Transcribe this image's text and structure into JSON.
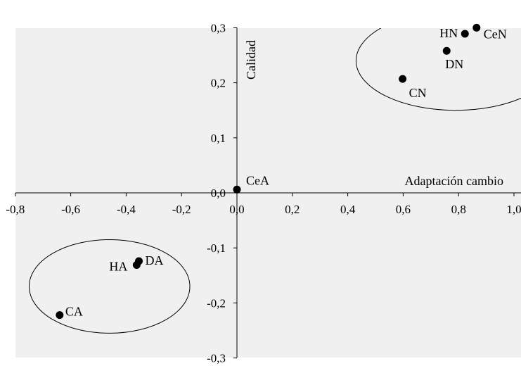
{
  "chart_data": {
    "type": "scatter",
    "xlabel": "Adaptación cambio",
    "ylabel": "Calidad",
    "xlim": [
      -0.8,
      1.0
    ],
    "ylim": [
      -0.3,
      0.3
    ],
    "x_ticks": [
      -0.8,
      -0.6,
      -0.4,
      -0.2,
      0.0,
      0.2,
      0.4,
      0.6,
      0.8,
      1.0
    ],
    "y_ticks": [
      -0.3,
      -0.2,
      -0.1,
      0.0,
      0.1,
      0.2,
      0.3
    ],
    "x_tick_labels": [
      "-0,8",
      "-0,6",
      "-0,4",
      "-0,2",
      "0,0",
      "0,2",
      "0,4",
      "0,6",
      "0,8",
      "1,0"
    ],
    "y_tick_labels": [
      "-0,3",
      "-0,2",
      "-0,1",
      "0,0",
      "0,1",
      "0,2",
      "0,3"
    ],
    "points": [
      {
        "label": "CeN",
        "x": 0.865,
        "y": 0.3
      },
      {
        "label": "HN",
        "x": 0.823,
        "y": 0.289
      },
      {
        "label": "DN",
        "x": 0.757,
        "y": 0.258
      },
      {
        "label": "CN",
        "x": 0.598,
        "y": 0.207
      },
      {
        "label": "CeA",
        "x": 0.0,
        "y": 0.006
      },
      {
        "label": "DA",
        "x": -0.354,
        "y": -0.124
      },
      {
        "label": "HA",
        "x": -0.362,
        "y": -0.131
      },
      {
        "label": "CA",
        "x": -0.64,
        "y": -0.222
      }
    ],
    "ellipses": [
      {
        "cx": 0.79,
        "cy": 0.24,
        "rx": 0.36,
        "ry": 0.09
      },
      {
        "cx": -0.46,
        "cy": -0.17,
        "rx": 0.29,
        "ry": 0.085
      }
    ],
    "grid": false,
    "background": "#f0f0f0",
    "marker_color": "#000000"
  }
}
